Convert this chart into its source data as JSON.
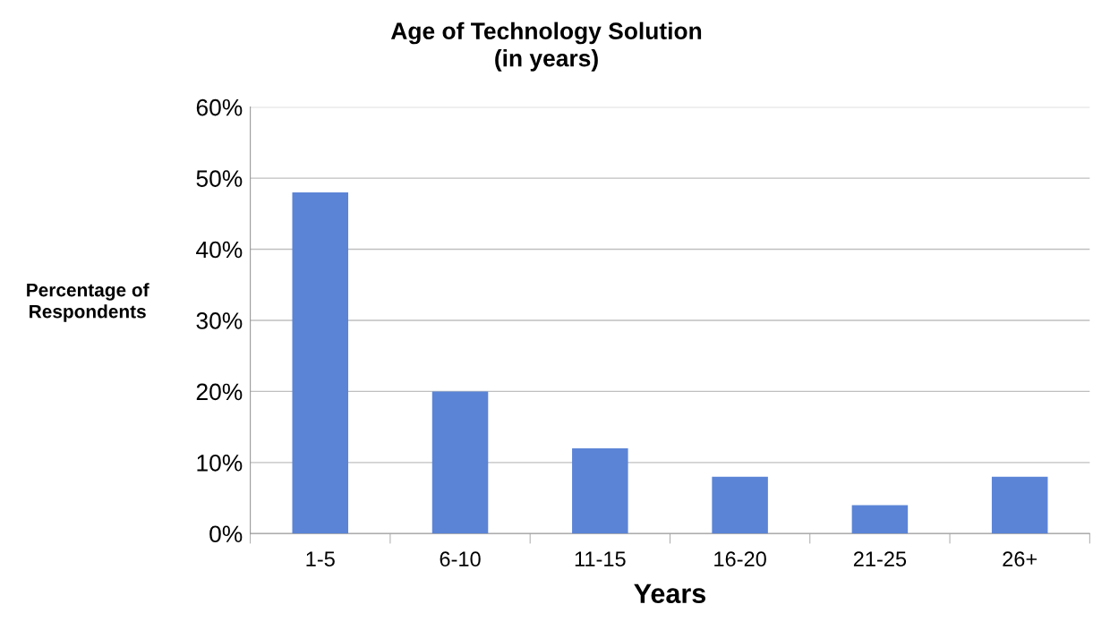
{
  "chart_data": {
    "type": "bar",
    "title": "Age of Technology Solution\n(in years)",
    "xlabel": "Years",
    "ylabel": "Percentage of\nRespondents",
    "categories": [
      "1-5",
      "6-10",
      "11-15",
      "16-20",
      "21-25",
      "26+"
    ],
    "values": [
      48,
      20,
      12,
      8,
      4,
      8
    ],
    "color": "#5b84d6",
    "ylim": [
      0,
      60
    ],
    "yticks": [
      {
        "value": 0,
        "label": "0%"
      },
      {
        "value": 10,
        "label": "10%"
      },
      {
        "value": 20,
        "label": "20%"
      },
      {
        "value": 30,
        "label": "30%"
      },
      {
        "value": 40,
        "label": "40%"
      },
      {
        "value": 50,
        "label": "50%"
      },
      {
        "value": 60,
        "label": "60%"
      }
    ],
    "grid": "y",
    "legend": false
  }
}
